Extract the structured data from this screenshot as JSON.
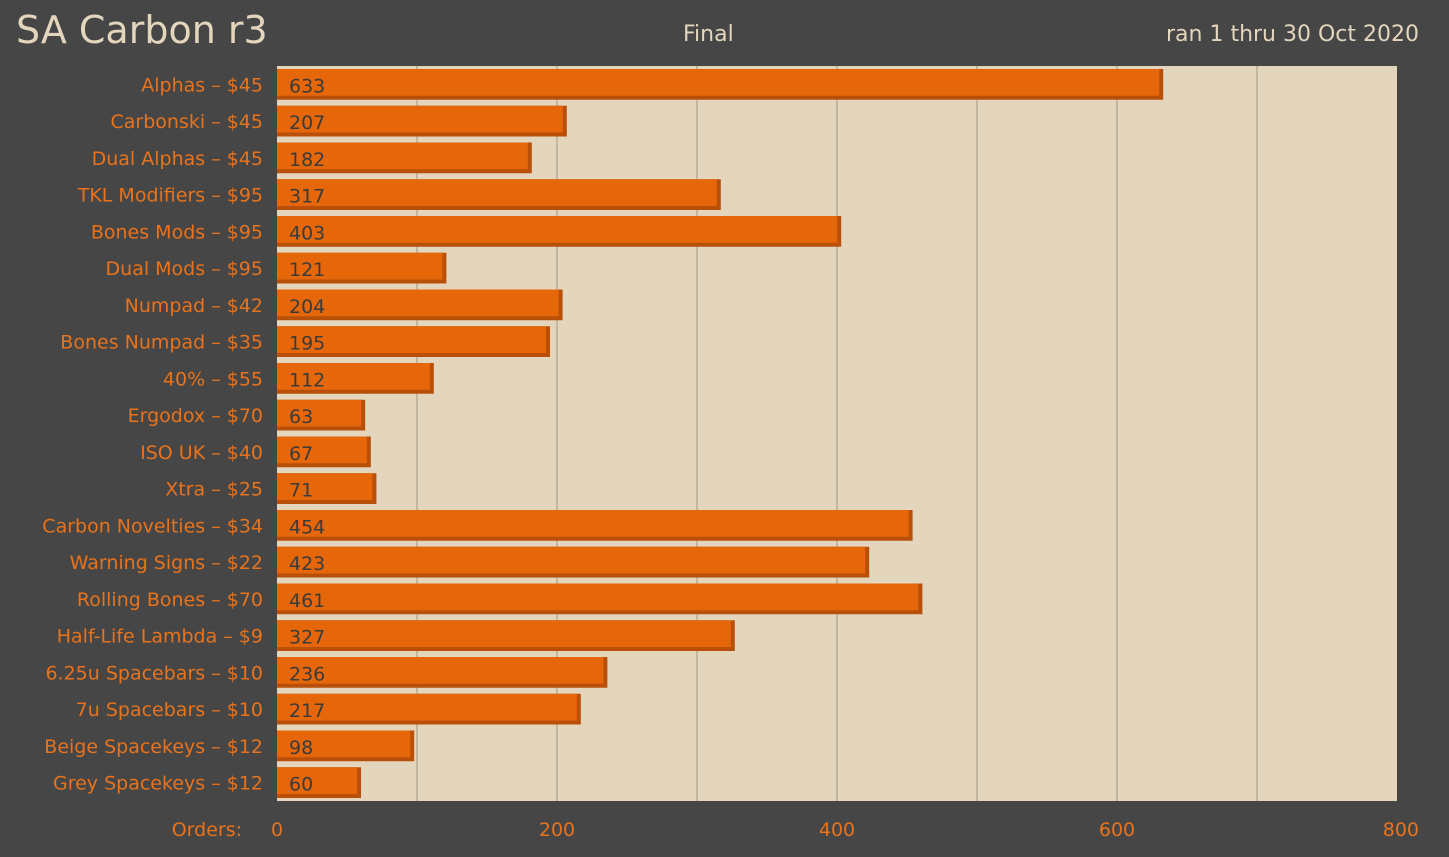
{
  "header": {
    "title": "SA Carbon r3",
    "subtitle": "Final",
    "date_range": "ran 1 thru 30 Oct 2020"
  },
  "colors": {
    "background": "#464646",
    "plot_background": "#e3d6bc",
    "bar": "#e5670a",
    "bar_edge": "#b8500a",
    "text_accent": "#e8731c",
    "title_text": "#e4d6bd",
    "gridline": "#b8ab94"
  },
  "chart_data": {
    "type": "bar",
    "orientation": "horizontal",
    "xlabel": "Orders:",
    "xlim": [
      0,
      800
    ],
    "xticks": [
      0,
      200,
      400,
      600,
      800
    ],
    "grid": true,
    "categories": [
      "Alphas – $45",
      "Carbonski – $45",
      "Dual Alphas – $45",
      "TKL Modifiers – $95",
      "Bones Mods – $95",
      "Dual Mods – $95",
      "Numpad – $42",
      "Bones Numpad – $35",
      "40% – $55",
      "Ergodox – $70",
      "ISO UK – $40",
      "Xtra – $25",
      "Carbon Novelties – $34",
      "Warning Signs – $22",
      "Rolling Bones – $70",
      "Half-Life Lambda – $9",
      "6.25u Spacebars – $10",
      "7u Spacebars – $10",
      "Beige Spacekeys – $12",
      "Grey Spacekeys – $12"
    ],
    "values": [
      633,
      207,
      182,
      317,
      403,
      121,
      204,
      195,
      112,
      63,
      67,
      71,
      454,
      423,
      461,
      327,
      236,
      217,
      98,
      60
    ]
  }
}
